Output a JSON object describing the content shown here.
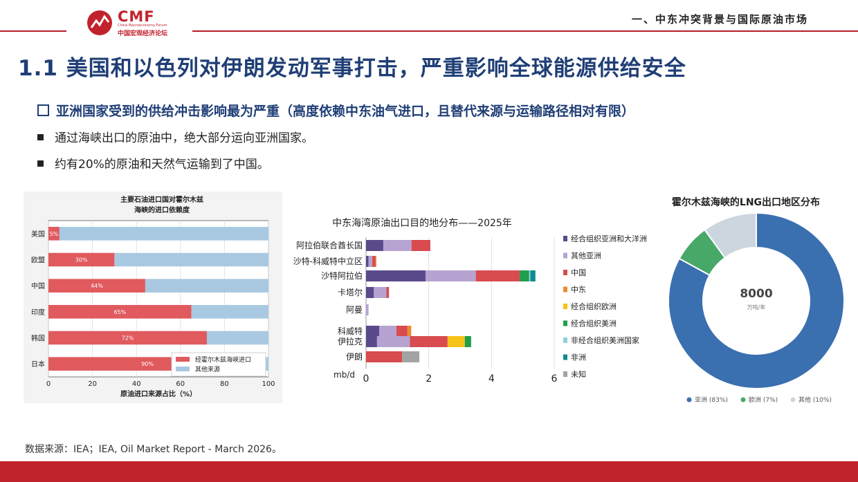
{
  "header": {
    "logo_text": "CMF",
    "logo_subtitle_en": "China Macroeconomy Forum",
    "logo_subtitle_cn": "中国宏观经济论坛",
    "section": "一、中东冲突背景与国际原油市场",
    "accent_color": "#c2222c"
  },
  "title": "1.1 美国和以色列对伊朗发动军事打击，严重影响全球能源供给安全",
  "subheading": "亚洲国家受到的供给冲击影响最为严重（高度依赖中东油气进口，且替代来源与运输路径相对有限）",
  "bullets": [
    "通过海峡出口的原油中，绝大部分运向亚洲国家。",
    "约有20%的原油和天然气运输到了中国。"
  ],
  "source": "数据来源：IEA；IEA, Oil Market Report - March 2026。",
  "chart_data": [
    {
      "type": "bar",
      "orientation": "horizontal-stacked",
      "title": "主要石油进口国对霍尔木兹海峡的进口依赖度",
      "title_lines": [
        "主要石油进口国对霍尔木兹",
        "海峡的进口依赖度"
      ],
      "xlabel": "原油进口来源占比（%）",
      "ylabel": "",
      "xlim": [
        0,
        100
      ],
      "xticks": [
        "0",
        "20",
        "40",
        "60",
        "80",
        "100"
      ],
      "categories": [
        "美国",
        "欧盟",
        "中国",
        "印度",
        "韩国",
        "日本"
      ],
      "series": [
        {
          "name": "经霍尔木兹海峡进口",
          "values": [
            5,
            30,
            44,
            65,
            72,
            90
          ],
          "labels": [
            "5%",
            "30%",
            "44%",
            "65%",
            "72%",
            "90%"
          ],
          "color": "#e05a5e"
        },
        {
          "name": "其他来源",
          "values": [
            95,
            70,
            56,
            35,
            28,
            10
          ],
          "color": "#a9c9e2"
        }
      ],
      "grid": true,
      "legend": "bottom-right"
    },
    {
      "type": "bar",
      "orientation": "horizontal-stacked",
      "title": "中东海湾原油出口目的地分布——2025年",
      "xlabel": "",
      "unit_label": "mb/d",
      "xlim": [
        0,
        6
      ],
      "xticks": [
        "0",
        "2",
        "4",
        "6"
      ],
      "categories": [
        "阿拉伯联合酋长国",
        "沙特-科威特中立区",
        "沙特阿拉伯",
        "卡塔尔",
        "阿曼",
        "科威特",
        "伊拉克",
        "伊朗"
      ],
      "series": [
        {
          "name": "经合组织亚洲和大洋洲",
          "color": "#5b4a8b",
          "values": [
            0.55,
            0.08,
            1.9,
            0.25,
            0.0,
            0.42,
            0.35,
            0.0
          ]
        },
        {
          "name": "其他亚洲",
          "color": "#b7a3d1",
          "values": [
            0.9,
            0.12,
            1.6,
            0.4,
            0.08,
            0.55,
            1.05,
            0.0
          ]
        },
        {
          "name": "中国",
          "color": "#d84b4f",
          "values": [
            0.6,
            0.1,
            1.4,
            0.08,
            0.0,
            0.35,
            1.2,
            1.15
          ]
        },
        {
          "name": "中东",
          "color": "#ec8b2f",
          "values": [
            0.0,
            0.03,
            0.0,
            0.0,
            0.0,
            0.12,
            0.0,
            0.0
          ]
        },
        {
          "name": "经合组织欧洲",
          "color": "#f5c218",
          "values": [
            0.0,
            0.0,
            0.0,
            0.0,
            0.0,
            0.0,
            0.55,
            0.0
          ]
        },
        {
          "name": "经合组织美洲",
          "color": "#1f9e4b",
          "values": [
            0.0,
            0.0,
            0.3,
            0.0,
            0.0,
            0.0,
            0.2,
            0.0
          ]
        },
        {
          "name": "非经合组织美洲国家",
          "color": "#8fd0d6",
          "values": [
            0.0,
            0.0,
            0.04,
            0.0,
            0.0,
            0.0,
            0.0,
            0.0
          ]
        },
        {
          "name": "非洲",
          "color": "#0f8a91",
          "values": [
            0.0,
            0.0,
            0.16,
            0.0,
            0.0,
            0.0,
            0.0,
            0.0
          ]
        },
        {
          "name": "未知",
          "color": "#a3a3a3",
          "values": [
            0.0,
            0.0,
            0.0,
            0.0,
            0.0,
            0.0,
            0.0,
            0.55
          ]
        }
      ],
      "grid": true,
      "legend": "right"
    },
    {
      "type": "pie",
      "style": "donut",
      "title": "霍尔木兹海峡的LNG出口地区分布",
      "center_value": "8000",
      "center_unit": "万吨/年",
      "slices": [
        {
          "name": "亚洲",
          "value": 83,
          "legend": "亚洲 (83%)",
          "color": "#3a6fb0"
        },
        {
          "name": "欧洲",
          "value": 7,
          "legend": "欧洲 (7%)",
          "color": "#48a868"
        },
        {
          "name": "其他",
          "value": 10,
          "legend": "其他 (10%)",
          "color": "#ccd6df"
        }
      ],
      "legend": "bottom"
    }
  ]
}
